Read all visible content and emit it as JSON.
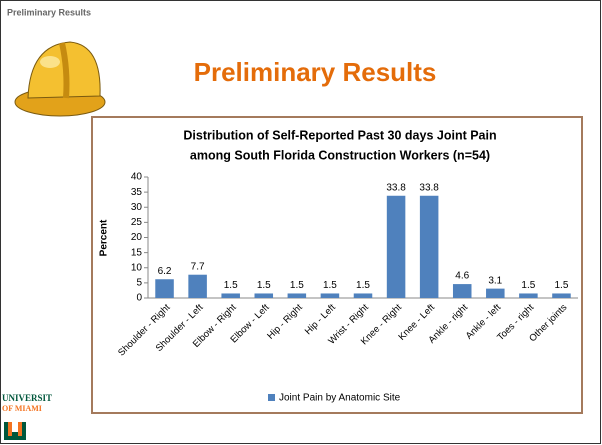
{
  "slide": {
    "header": "Preliminary Results",
    "title": "Preliminary Results",
    "logo": [
      "UNIVERSIT",
      "OF MIAMI"
    ]
  },
  "chart_data": {
    "type": "bar",
    "title": [
      "Distribution of Self-Reported Past 30 days Joint Pain",
      "among South Florida Construction Workers (n=54)"
    ],
    "y_label": "Percent",
    "categories": [
      "Shoulder - Right",
      "Shoulder - Left",
      "Elbow - Right",
      "Elbow - Left",
      "Hip - Right",
      "Hip - Left",
      "Wrist - Right",
      "Knee - Right",
      "Knee - Left",
      "Ankle - right",
      "Ankle - left",
      "Toes - right",
      "Other joints"
    ],
    "series": [
      {
        "name": "Joint Pain by Anatomic Site",
        "color": "#4f81bd",
        "values": [
          6.2,
          7.7,
          1.5,
          1.5,
          1.5,
          1.5,
          1.5,
          33.8,
          33.8,
          4.6,
          3.1,
          1.5,
          1.5
        ]
      }
    ],
    "ylim": [
      0,
      40
    ],
    "yticks": [
      0,
      5,
      10,
      15,
      20,
      25,
      30,
      35,
      40
    ],
    "grid": false,
    "legend": "bottom"
  }
}
